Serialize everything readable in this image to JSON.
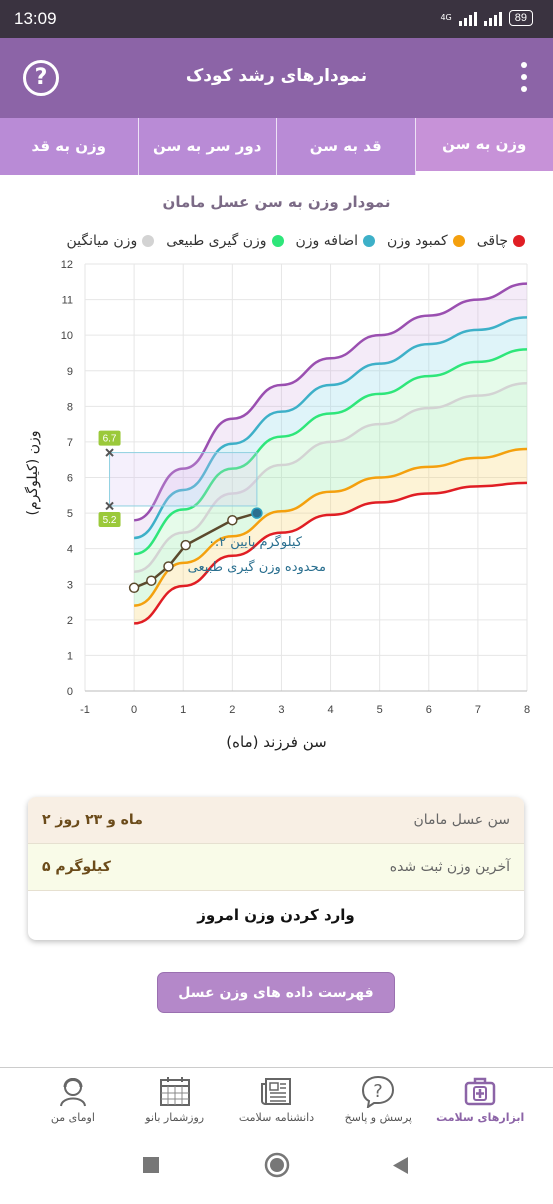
{
  "status": {
    "time": "13:09",
    "network": "4G",
    "battery": "89"
  },
  "appbar": {
    "title": "نمودارهای رشد کودک",
    "help_icon": "?"
  },
  "tabs": [
    {
      "label": "وزن به قد",
      "active": false
    },
    {
      "label": "دور سر به سن",
      "active": false
    },
    {
      "label": "قد به سن",
      "active": false
    },
    {
      "label": "وزن به سن",
      "active": true
    }
  ],
  "chart_title": "نمودار وزن به سن عسل مامان",
  "legend": [
    {
      "label": "چاقی",
      "color": "#e01e24"
    },
    {
      "label": "کمبود وزن",
      "color": "#f4a00e"
    },
    {
      "label": "اضافه وزن",
      "color": "#3db0c8"
    },
    {
      "label": "وزن گیری طبیعی",
      "color": "#2ee67a"
    },
    {
      "label": "وزن میانگین",
      "color": "#d3d3d3"
    }
  ],
  "chart_data": {
    "type": "line",
    "xlabel": "سن فرزند (ماه)",
    "ylabel": "وزن (کیلوگرم)",
    "xlim": [
      -1,
      8
    ],
    "ylim": [
      0,
      12
    ],
    "xticks": [
      -1,
      0,
      1,
      2,
      3,
      4,
      5,
      6,
      7,
      8
    ],
    "yticks": [
      0,
      1,
      2,
      3,
      4,
      5,
      6,
      7,
      8,
      9,
      10,
      11,
      12
    ],
    "grid": true,
    "x": [
      0,
      1,
      2,
      3,
      4,
      5,
      6,
      7,
      8
    ],
    "curves": [
      {
        "color": "#e01e24",
        "values": [
          1.9,
          2.95,
          3.8,
          4.45,
          4.95,
          5.3,
          5.55,
          5.75,
          5.85
        ]
      },
      {
        "color": "#f4a00e",
        "values": [
          2.4,
          3.6,
          4.35,
          5.05,
          5.6,
          6.0,
          6.3,
          6.55,
          6.8
        ]
      },
      {
        "color": "#d3d3d3",
        "values": [
          3.35,
          4.45,
          5.55,
          6.35,
          7.0,
          7.5,
          7.95,
          8.3,
          8.65
        ]
      },
      {
        "color": "#2ee67a",
        "values": [
          3.85,
          5.1,
          6.25,
          7.15,
          7.8,
          8.35,
          8.85,
          9.25,
          9.6
        ]
      },
      {
        "color": "#3db0c8",
        "values": [
          4.3,
          5.65,
          6.95,
          7.85,
          8.6,
          9.2,
          9.75,
          10.15,
          10.5
        ]
      },
      {
        "color": "#9a4fb0",
        "values": [
          4.8,
          6.25,
          7.65,
          8.6,
          9.35,
          10.0,
          10.55,
          11.0,
          11.45
        ]
      }
    ],
    "child_points": {
      "color": "#5b4a2d",
      "x": [
        0,
        0.35,
        0.7,
        1.05,
        2.0,
        2.5
      ],
      "y": [
        2.9,
        3.1,
        3.5,
        4.1,
        4.8,
        5.0
      ]
    },
    "range_markers": [
      {
        "x": -0.5,
        "y": 6.7,
        "label": "6.7"
      },
      {
        "x": -0.5,
        "y": 5.2,
        "label": "5.2"
      }
    ],
    "annotations": [
      "۰.۲ کیلوگرم پایین",
      "محدوده وزن گیری طبیعی"
    ]
  },
  "info": {
    "age_label": "سن عسل مامان",
    "age_value": "۲ ماه و ۲۳ روز",
    "weight_label": "آخرین وزن ثبت شده",
    "weight_value": "۵ کیلوگرم",
    "enter_button": "وارد کردن وزن امروز"
  },
  "list_button": "فهرست داده های وزن عسل مامان",
  "bottom_nav": [
    {
      "label": "اومای من",
      "icon": "user-icon",
      "active": false
    },
    {
      "label": "روزشمار بانو",
      "icon": "calendar-icon",
      "active": false
    },
    {
      "label": "دانشنامه سلامت",
      "icon": "newspaper-icon",
      "active": false
    },
    {
      "label": "پرسش و پاسخ",
      "icon": "question-bubble-icon",
      "active": false
    },
    {
      "label": "ابزارهای سلامت",
      "icon": "medical-kit-icon",
      "active": true
    }
  ]
}
